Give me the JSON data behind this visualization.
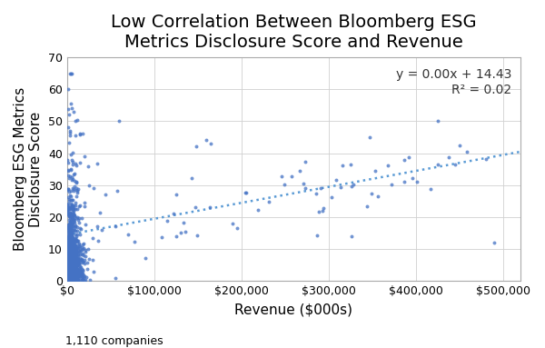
{
  "title": "Low Correlation Between Bloomberg ESG\nMetrics Disclosure Score and Revenue",
  "xlabel": "Revenue ($000s)",
  "ylabel": "Bloomberg ESG Metrics\nDisclosure Score",
  "annotation": "y = 0.00x + 14.43\nR² = 0.02",
  "footnote": "1,110 companies",
  "xlim": [
    0,
    520000
  ],
  "ylim": [
    0,
    70
  ],
  "yticks": [
    0,
    10,
    20,
    30,
    40,
    50,
    60,
    70
  ],
  "xticks": [
    0,
    100000,
    200000,
    300000,
    400000,
    500000
  ],
  "scatter_color": "#4472C4",
  "trendline_color": "#5B9BD5",
  "background_color": "#FFFFFF",
  "dot_size": 8,
  "slope": 5e-05,
  "intercept": 14.43,
  "seed": 99,
  "n_cluster": 1040,
  "n_sparse": 70,
  "title_fontsize": 14,
  "axis_label_fontsize": 11,
  "tick_fontsize": 9,
  "annotation_fontsize": 10
}
